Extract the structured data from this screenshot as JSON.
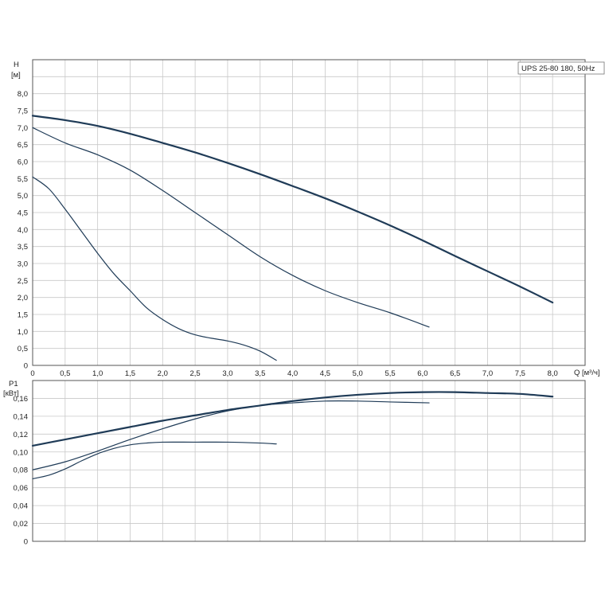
{
  "chart_data": [
    {
      "type": "line",
      "legend": "UPS 25-80 180, 50Hz",
      "legend_position": "top-right",
      "ylabel_name": "H",
      "ylabel_unit": "[м]",
      "xlabel_name": "Q",
      "xlabel_unit": "[м³/ч]",
      "grid": true,
      "xlim": [
        0,
        8.5
      ],
      "ylim": [
        0,
        9.0
      ],
      "x_ticks": [
        "0",
        "0,5",
        "1,0",
        "1,5",
        "2,0",
        "2,5",
        "3,0",
        "3,5",
        "4,0",
        "4,5",
        "5,0",
        "5,5",
        "6,0",
        "6,5",
        "7,0",
        "7,5",
        "8,0"
      ],
      "y_ticks": [
        "0",
        "0,5",
        "1,0",
        "1,5",
        "2,0",
        "2,5",
        "3,0",
        "3,5",
        "4,0",
        "4,5",
        "5,0",
        "5,5",
        "6,0",
        "6,5",
        "7,0",
        "7,5",
        "8,0"
      ],
      "series": [
        {
          "speed": 3,
          "x": [
            0,
            0.5,
            1.0,
            1.5,
            2.0,
            2.5,
            3.0,
            3.5,
            4.0,
            4.5,
            5.0,
            5.5,
            6.0,
            6.5,
            7.0,
            7.5,
            8.0
          ],
          "y": [
            7.35,
            7.22,
            7.05,
            6.82,
            6.55,
            6.27,
            5.96,
            5.63,
            5.28,
            4.92,
            4.53,
            4.12,
            3.68,
            3.22,
            2.77,
            2.32,
            1.85
          ]
        },
        {
          "speed": 2,
          "x": [
            0,
            0.5,
            1.0,
            1.5,
            2.0,
            2.5,
            3.0,
            3.5,
            4.0,
            4.5,
            5.0,
            5.5,
            6.1
          ],
          "y": [
            7.0,
            6.55,
            6.2,
            5.75,
            5.15,
            4.5,
            3.85,
            3.2,
            2.65,
            2.2,
            1.85,
            1.55,
            1.13
          ]
        },
        {
          "speed": 1,
          "x": [
            0,
            0.25,
            0.5,
            0.75,
            1.0,
            1.25,
            1.5,
            1.75,
            2.0,
            2.25,
            2.5,
            2.75,
            3.0,
            3.25,
            3.5,
            3.75
          ],
          "y": [
            5.55,
            5.2,
            4.6,
            3.95,
            3.3,
            2.7,
            2.2,
            1.7,
            1.35,
            1.08,
            0.9,
            0.8,
            0.72,
            0.6,
            0.42,
            0.15
          ]
        }
      ]
    },
    {
      "type": "line",
      "ylabel_name": "P1",
      "ylabel_unit": "[кВт]",
      "grid": true,
      "xlim": [
        0,
        8.5
      ],
      "ylim": [
        0,
        0.18
      ],
      "y_ticks": [
        "0",
        "0,02",
        "0,04",
        "0,06",
        "0,08",
        "0,10",
        "0,12",
        "0,14",
        "0,16"
      ],
      "series": [
        {
          "speed": 3,
          "x": [
            0,
            0.5,
            1.0,
            1.5,
            2.0,
            2.5,
            3.0,
            3.5,
            4.0,
            4.5,
            5.0,
            5.5,
            6.0,
            6.5,
            7.0,
            7.5,
            8.0
          ],
          "y": [
            0.107,
            0.114,
            0.121,
            0.128,
            0.135,
            0.141,
            0.147,
            0.152,
            0.157,
            0.161,
            0.164,
            0.166,
            0.167,
            0.167,
            0.166,
            0.165,
            0.162
          ]
        },
        {
          "speed": 2,
          "x": [
            0,
            0.5,
            1.0,
            1.5,
            2.0,
            2.5,
            3.0,
            3.5,
            4.0,
            4.5,
            5.0,
            5.5,
            6.1
          ],
          "y": [
            0.08,
            0.089,
            0.101,
            0.114,
            0.126,
            0.137,
            0.146,
            0.152,
            0.155,
            0.157,
            0.157,
            0.156,
            0.155
          ]
        },
        {
          "speed": 1,
          "x": [
            0,
            0.25,
            0.5,
            0.75,
            1.0,
            1.25,
            1.5,
            1.75,
            2.0,
            2.5,
            3.0,
            3.5,
            3.75
          ],
          "y": [
            0.07,
            0.074,
            0.081,
            0.09,
            0.098,
            0.104,
            0.108,
            0.11,
            0.111,
            0.111,
            0.111,
            0.11,
            0.109
          ]
        }
      ]
    }
  ]
}
